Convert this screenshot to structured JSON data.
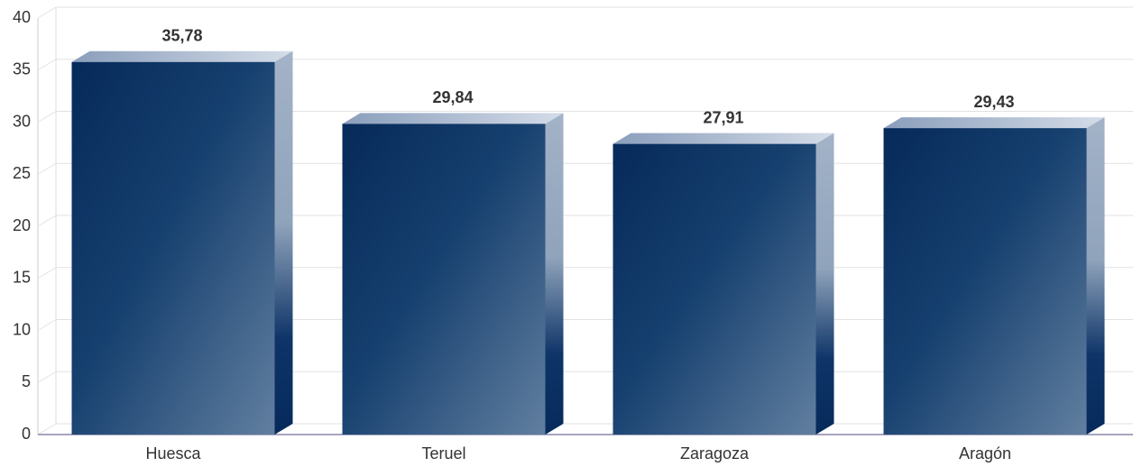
{
  "chart_data": {
    "type": "bar",
    "categories": [
      "Huesca",
      "Teruel",
      "Zaragoza",
      "Aragón"
    ],
    "values": [
      35.78,
      29.84,
      27.91,
      29.43
    ],
    "value_labels": [
      "35,78",
      "29,84",
      "27,91",
      "29,43"
    ],
    "color": "#0a2d5e",
    "ylim": [
      0,
      40
    ],
    "yticks": [
      0,
      5,
      10,
      15,
      20,
      25,
      30,
      35,
      40
    ],
    "grid": true
  }
}
